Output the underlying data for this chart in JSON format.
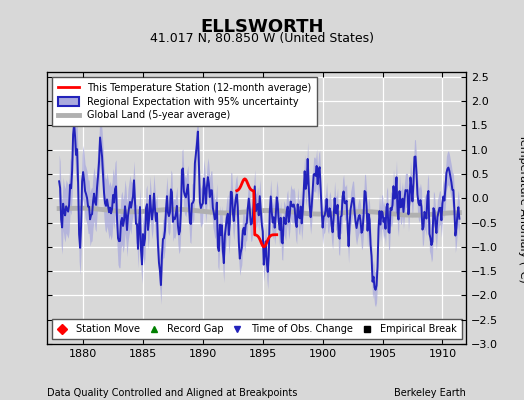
{
  "title": "ELLSWORTH",
  "subtitle": "41.017 N, 80.850 W (United States)",
  "ylabel": "Temperature Anomaly (°C)",
  "xlabel_note": "Data Quality Controlled and Aligned at Breakpoints",
  "credit": "Berkeley Earth",
  "xlim": [
    1877,
    1912
  ],
  "ylim": [
    -3.0,
    2.6
  ],
  "yticks": [
    -3,
    -2.5,
    -2,
    -1.5,
    -1,
    -0.5,
    0,
    0.5,
    1,
    1.5,
    2,
    2.5
  ],
  "xticks": [
    1880,
    1885,
    1890,
    1895,
    1900,
    1905,
    1910
  ],
  "bg_color": "#d8d8d8",
  "plot_bg": "#d8d8d8",
  "grid_color": "white",
  "regional_color": "#2222bb",
  "regional_fill": "#aaaadd",
  "station_color": "red",
  "global_color": "#b0b0b0",
  "title_fontsize": 13,
  "subtitle_fontsize": 9,
  "tick_labelsize": 8
}
